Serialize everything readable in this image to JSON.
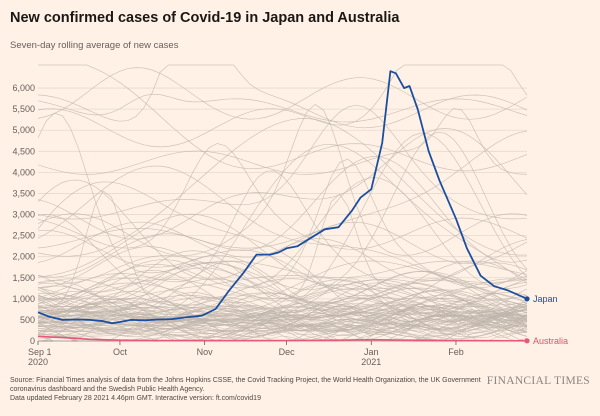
{
  "header": {
    "title": "New confirmed cases of Covid-19 in Japan and Australia",
    "subtitle": "Seven-day rolling average of new cases"
  },
  "footer": {
    "source": "Source: Financial Times analysis of data from the Johns Hopkins CSSE, the Covid Tracking Project, the World Health Organization, the UK Government coronavirus dashboard and the Swedish Public Health Agency.",
    "updated": "Data updated February 28 2021 4.46pm GMT. Interactive version: ft.com/covid19",
    "brand": "FINANCIAL TIMES"
  },
  "colors": {
    "background": "#fff1e5",
    "japan": "#1a4fa0",
    "australia": "#e8587a",
    "context": "#bdb4ab",
    "grid": "#e6d9ce"
  },
  "chart_data": {
    "type": "line",
    "title": "New confirmed cases of Covid-19 in Japan and Australia",
    "subtitle": "Seven-day rolling average of new cases",
    "x_range": [
      "2020-09-01",
      "2021-02-27"
    ],
    "ylim": [
      0,
      6500
    ],
    "y_ticks": [
      0,
      500,
      1000,
      1500,
      2000,
      2500,
      3000,
      3500,
      4000,
      4500,
      5000,
      5500,
      6000
    ],
    "y_tick_labels": [
      "0",
      "500",
      "1,000",
      "1,500",
      "2,000",
      "2,500",
      "3,000",
      "3,500",
      "4,000",
      "4,500",
      "5,000",
      "5,500",
      "6,000"
    ],
    "x_ticks": [
      {
        "date": "2020-09-01",
        "label": "Sep 1",
        "sublabel": "2020"
      },
      {
        "date": "2020-10-01",
        "label": "Oct",
        "sublabel": ""
      },
      {
        "date": "2020-11-01",
        "label": "Nov",
        "sublabel": ""
      },
      {
        "date": "2020-12-01",
        "label": "Dec",
        "sublabel": ""
      },
      {
        "date": "2021-01-01",
        "label": "Jan",
        "sublabel": "2021"
      },
      {
        "date": "2021-02-01",
        "label": "Feb",
        "sublabel": ""
      }
    ],
    "grid": true,
    "series": [
      {
        "name": "Japan",
        "color": "#1a4fa0",
        "points": [
          [
            "2020-09-01",
            680
          ],
          [
            "2020-09-05",
            580
          ],
          [
            "2020-09-10",
            500
          ],
          [
            "2020-09-15",
            510
          ],
          [
            "2020-09-20",
            500
          ],
          [
            "2020-09-25",
            470
          ],
          [
            "2020-09-28",
            420
          ],
          [
            "2020-10-01",
            450
          ],
          [
            "2020-10-05",
            500
          ],
          [
            "2020-10-10",
            490
          ],
          [
            "2020-10-15",
            510
          ],
          [
            "2020-10-20",
            520
          ],
          [
            "2020-10-25",
            560
          ],
          [
            "2020-10-31",
            600
          ],
          [
            "2020-11-05",
            760
          ],
          [
            "2020-11-10",
            1200
          ],
          [
            "2020-11-15",
            1600
          ],
          [
            "2020-11-20",
            2050
          ],
          [
            "2020-11-25",
            2050
          ],
          [
            "2020-11-28",
            2100
          ],
          [
            "2020-12-01",
            2200
          ],
          [
            "2020-12-05",
            2250
          ],
          [
            "2020-12-10",
            2450
          ],
          [
            "2020-12-15",
            2650
          ],
          [
            "2020-12-20",
            2700
          ],
          [
            "2020-12-25",
            3100
          ],
          [
            "2020-12-28",
            3400
          ],
          [
            "2021-01-01",
            3600
          ],
          [
            "2021-01-05",
            4700
          ],
          [
            "2021-01-08",
            6400
          ],
          [
            "2021-01-10",
            6350
          ],
          [
            "2021-01-13",
            6000
          ],
          [
            "2021-01-15",
            6050
          ],
          [
            "2021-01-18",
            5500
          ],
          [
            "2021-01-22",
            4500
          ],
          [
            "2021-01-26",
            3800
          ],
          [
            "2021-02-01",
            2900
          ],
          [
            "2021-02-05",
            2200
          ],
          [
            "2021-02-10",
            1550
          ],
          [
            "2021-02-15",
            1300
          ],
          [
            "2021-02-20",
            1200
          ],
          [
            "2021-02-27",
            1000
          ]
        ]
      },
      {
        "name": "Australia",
        "color": "#e8587a",
        "points": [
          [
            "2020-09-01",
            110
          ],
          [
            "2020-09-10",
            80
          ],
          [
            "2020-09-20",
            40
          ],
          [
            "2020-10-01",
            18
          ],
          [
            "2020-10-15",
            12
          ],
          [
            "2020-11-01",
            10
          ],
          [
            "2020-11-15",
            10
          ],
          [
            "2020-12-01",
            12
          ],
          [
            "2020-12-20",
            20
          ],
          [
            "2021-01-01",
            30
          ],
          [
            "2021-01-15",
            20
          ],
          [
            "2021-02-01",
            10
          ],
          [
            "2021-02-15",
            8
          ],
          [
            "2021-02-27",
            5
          ]
        ]
      }
    ],
    "context_series_note": "Unlabelled background lines representing other countries"
  }
}
